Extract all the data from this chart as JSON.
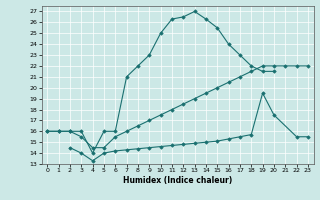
{
  "xlabel": "Humidex (Indice chaleur)",
  "bg_color": "#cce8e6",
  "line_color": "#1a7070",
  "xlim": [
    -0.5,
    23.5
  ],
  "ylim": [
    13,
    27.5
  ],
  "yticks": [
    13,
    14,
    15,
    16,
    17,
    18,
    19,
    20,
    21,
    22,
    23,
    24,
    25,
    26,
    27
  ],
  "xticks": [
    0,
    1,
    2,
    3,
    4,
    5,
    6,
    7,
    8,
    9,
    10,
    11,
    12,
    13,
    14,
    15,
    16,
    17,
    18,
    19,
    20,
    21,
    22,
    23
  ],
  "lines": [
    {
      "x": [
        0,
        1,
        2,
        3,
        4,
        5,
        6,
        7,
        8,
        9,
        10,
        11,
        12,
        13,
        14,
        15,
        16,
        17,
        18,
        19,
        20
      ],
      "y": [
        16,
        16,
        16,
        16,
        14,
        16,
        16,
        21,
        22,
        23,
        25,
        26.3,
        26.5,
        27,
        26.3,
        25.5,
        24,
        23,
        22,
        21.5,
        21.5
      ]
    },
    {
      "x": [
        0,
        1,
        2,
        3,
        4,
        5,
        6,
        7,
        8,
        9,
        10,
        11,
        12,
        13,
        14,
        15,
        16,
        17,
        18,
        19,
        20,
        21,
        22,
        23
      ],
      "y": [
        16,
        16,
        16,
        15.5,
        14.5,
        14.5,
        15.5,
        16,
        16.5,
        17,
        17.5,
        18,
        18.5,
        19,
        19.5,
        20,
        20.5,
        21,
        21.5,
        22,
        22,
        22,
        22,
        22
      ]
    },
    {
      "x": [
        2,
        3,
        4,
        5,
        6,
        7,
        8,
        9,
        10,
        11,
        12,
        13,
        14,
        15,
        16,
        17,
        18,
        19,
        20,
        22,
        23
      ],
      "y": [
        14.5,
        14,
        13.3,
        14,
        14.2,
        14.3,
        14.4,
        14.5,
        14.6,
        14.7,
        14.8,
        14.9,
        15,
        15.1,
        15.3,
        15.5,
        15.7,
        19.5,
        17.5,
        15.5,
        15.5
      ]
    }
  ]
}
